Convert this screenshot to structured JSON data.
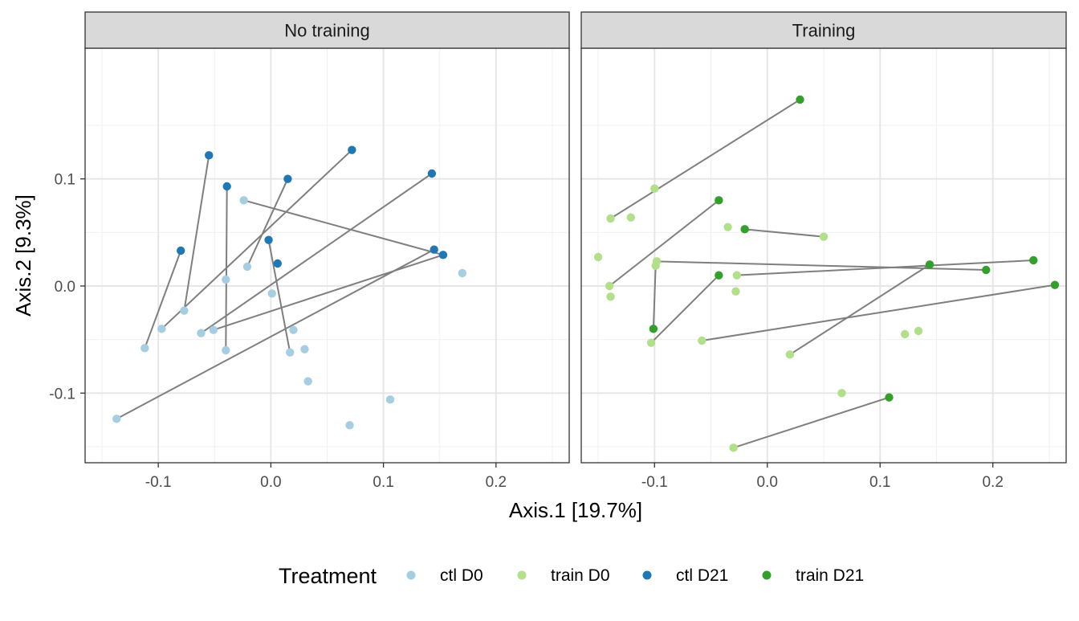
{
  "chart_data": {
    "type": "scatter",
    "subtype": "faceted PCoA ordination with paired segments",
    "xlabel": "Axis.1   [19.7%]",
    "ylabel": "Axis.2   [9.3%]",
    "xlim": [
      -0.165,
      0.265
    ],
    "ylim": [
      -0.165,
      0.222
    ],
    "x_ticks": [
      -0.1,
      0.0,
      0.1,
      0.2
    ],
    "x_tick_labels": [
      "-0.1",
      "0.0",
      "0.1",
      "0.2"
    ],
    "y_ticks": [
      -0.1,
      0.0,
      0.1
    ],
    "y_tick_labels": [
      "-0.1",
      "0.0",
      "0.1"
    ],
    "grid": true,
    "legend": {
      "title": "Treatment",
      "placement": "bottom",
      "entries": [
        {
          "label": "ctl D0",
          "color": "#a6cee3"
        },
        {
          "label": "train D0",
          "color": "#b2df8a"
        },
        {
          "label": "ctl D21",
          "color": "#1f78b4"
        },
        {
          "label": "train D21",
          "color": "#33a02c"
        }
      ]
    },
    "segment_color": "#7f7f7f",
    "facets": [
      {
        "title": "No training",
        "series": [
          {
            "name": "ctl D0",
            "color": "#a6cee3",
            "points": [
              [
                -0.137,
                -0.124
              ],
              [
                -0.112,
                -0.058
              ],
              [
                -0.097,
                -0.04
              ],
              [
                -0.077,
                -0.023
              ],
              [
                -0.062,
                -0.044
              ],
              [
                -0.051,
                -0.041
              ],
              [
                -0.04,
                -0.06
              ],
              [
                -0.04,
                0.006
              ],
              [
                -0.024,
                0.08
              ],
              [
                -0.021,
                0.018
              ],
              [
                0.001,
                -0.007
              ],
              [
                0.017,
                -0.062
              ],
              [
                0.02,
                -0.041
              ],
              [
                0.03,
                -0.059
              ],
              [
                0.033,
                -0.089
              ],
              [
                0.07,
                -0.13
              ],
              [
                0.106,
                -0.106
              ],
              [
                0.17,
                0.012
              ]
            ]
          },
          {
            "name": "ctl D21",
            "color": "#1f78b4",
            "points": [
              [
                -0.08,
                0.033
              ],
              [
                -0.055,
                0.122
              ],
              [
                -0.039,
                0.093
              ],
              [
                -0.002,
                0.043
              ],
              [
                0.006,
                0.021
              ],
              [
                0.015,
                0.1
              ],
              [
                0.072,
                0.127
              ],
              [
                0.143,
                0.105
              ],
              [
                0.145,
                0.034
              ],
              [
                0.153,
                0.029
              ]
            ]
          }
        ],
        "segments": [
          [
            [
              -0.112,
              -0.058
            ],
            [
              -0.08,
              0.033
            ]
          ],
          [
            [
              -0.077,
              -0.023
            ],
            [
              -0.055,
              0.122
            ]
          ],
          [
            [
              -0.04,
              -0.06
            ],
            [
              -0.039,
              0.093
            ]
          ],
          [
            [
              -0.021,
              0.018
            ],
            [
              0.015,
              0.1
            ]
          ],
          [
            [
              -0.097,
              -0.04
            ],
            [
              0.072,
              0.127
            ]
          ],
          [
            [
              -0.137,
              -0.124
            ],
            [
              0.145,
              0.034
            ]
          ],
          [
            [
              -0.024,
              0.08
            ],
            [
              0.153,
              0.029
            ]
          ],
          [
            [
              -0.062,
              -0.044
            ],
            [
              0.143,
              0.105
            ]
          ],
          [
            [
              -0.051,
              -0.041
            ],
            [
              0.153,
              0.029
            ]
          ],
          [
            [
              0.017,
              -0.062
            ],
            [
              -0.002,
              0.043
            ]
          ]
        ]
      },
      {
        "title": "Training",
        "series": [
          {
            "name": "train D0",
            "color": "#b2df8a",
            "points": [
              [
                -0.15,
                0.027
              ],
              [
                -0.139,
                0.063
              ],
              [
                -0.14,
                0.0
              ],
              [
                -0.139,
                -0.01
              ],
              [
                -0.121,
                0.064
              ],
              [
                -0.1,
                0.091
              ],
              [
                -0.099,
                0.019
              ],
              [
                -0.098,
                0.023
              ],
              [
                -0.103,
                -0.053
              ],
              [
                -0.058,
                -0.051
              ],
              [
                -0.035,
                0.055
              ],
              [
                -0.027,
                0.01
              ],
              [
                -0.028,
                -0.005
              ],
              [
                -0.03,
                -0.151
              ],
              [
                0.02,
                -0.064
              ],
              [
                0.05,
                0.046
              ],
              [
                0.066,
                -0.1
              ],
              [
                0.122,
                -0.045
              ],
              [
                0.134,
                -0.042
              ]
            ]
          },
          {
            "name": "train D21",
            "color": "#33a02c",
            "points": [
              [
                -0.101,
                -0.04
              ],
              [
                -0.043,
                0.08
              ],
              [
                -0.043,
                0.01
              ],
              [
                -0.02,
                0.053
              ],
              [
                0.029,
                0.174
              ],
              [
                0.108,
                -0.104
              ],
              [
                0.144,
                0.02
              ],
              [
                0.194,
                0.015
              ],
              [
                0.236,
                0.024
              ],
              [
                0.255,
                0.001
              ]
            ]
          }
        ],
        "segments": [
          [
            [
              -0.139,
              0.063
            ],
            [
              0.029,
              0.174
            ]
          ],
          [
            [
              -0.14,
              0.0
            ],
            [
              -0.043,
              0.08
            ]
          ],
          [
            [
              -0.099,
              0.019
            ],
            [
              -0.101,
              -0.04
            ]
          ],
          [
            [
              -0.103,
              -0.053
            ],
            [
              -0.043,
              0.01
            ]
          ],
          [
            [
              -0.02,
              0.053
            ],
            [
              0.05,
              0.046
            ]
          ],
          [
            [
              -0.098,
              0.023
            ],
            [
              0.194,
              0.015
            ]
          ],
          [
            [
              -0.027,
              0.01
            ],
            [
              0.236,
              0.024
            ]
          ],
          [
            [
              -0.058,
              -0.051
            ],
            [
              0.255,
              0.001
            ]
          ],
          [
            [
              0.02,
              -0.064
            ],
            [
              0.144,
              0.02
            ]
          ],
          [
            [
              -0.03,
              -0.151
            ],
            [
              0.108,
              -0.104
            ]
          ]
        ]
      }
    ]
  }
}
